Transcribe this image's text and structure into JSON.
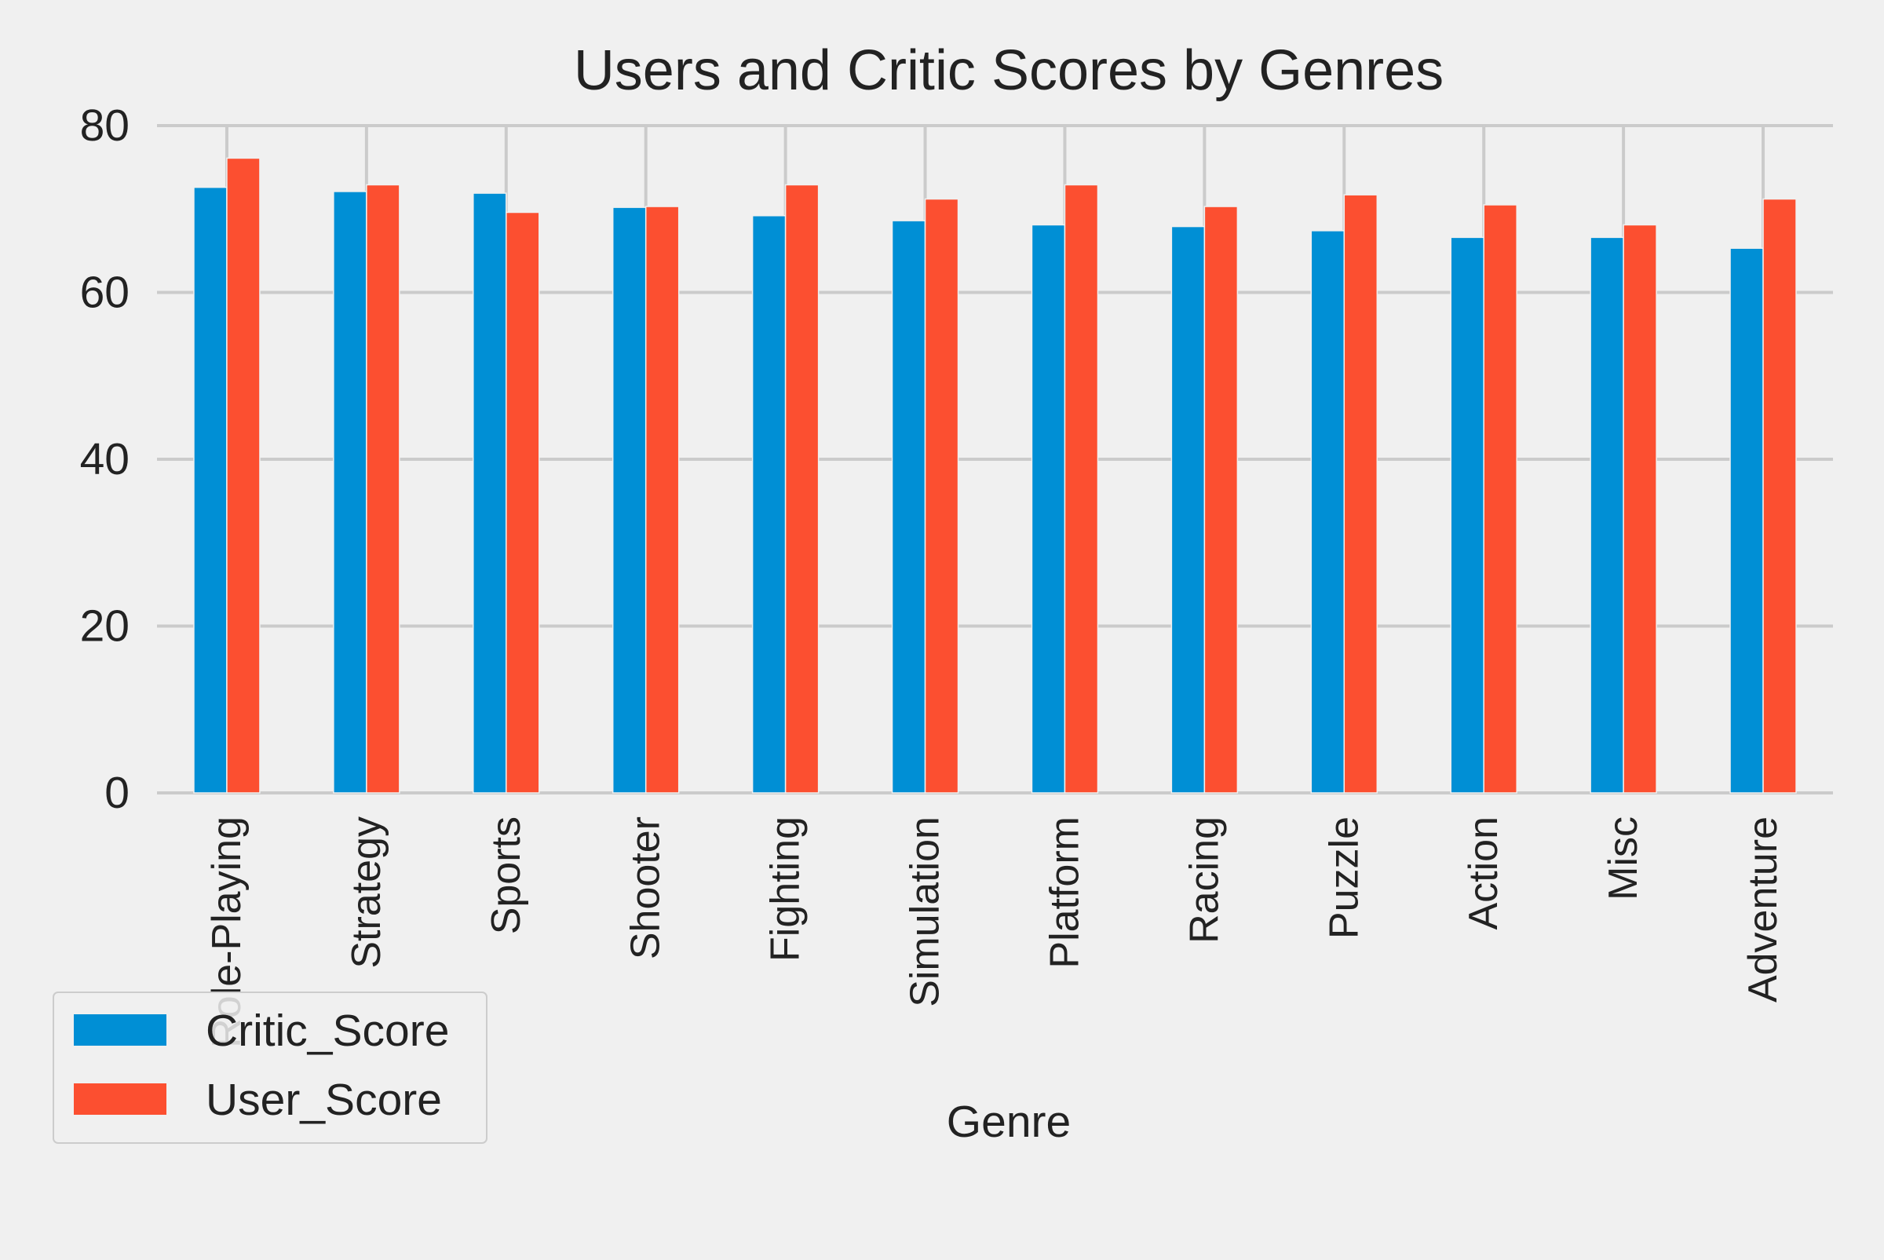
{
  "chart_data": {
    "type": "bar",
    "title": "Users and Critic Scores by Genres",
    "xlabel": "Genre",
    "ylabel": "",
    "ylim": [
      0,
      80
    ],
    "yticks": [
      0,
      20,
      40,
      60,
      80
    ],
    "grid": true,
    "legend_position": "bottom-left",
    "categories": [
      "Role-Playing",
      "Strategy",
      "Sports",
      "Shooter",
      "Fighting",
      "Simulation",
      "Platform",
      "Racing",
      "Puzzle",
      "Action",
      "Misc",
      "Adventure"
    ],
    "series": [
      {
        "name": "Critic_Score",
        "color": "#008fd5",
        "values": [
          72.6,
          72.1,
          71.9,
          70.2,
          69.2,
          68.6,
          68.1,
          67.9,
          67.4,
          66.6,
          66.6,
          65.3
        ]
      },
      {
        "name": "User_Score",
        "color": "#fc4f30",
        "values": [
          76.1,
          72.9,
          69.6,
          70.3,
          72.9,
          71.2,
          72.9,
          70.3,
          71.7,
          70.5,
          68.1,
          71.2
        ]
      }
    ]
  }
}
